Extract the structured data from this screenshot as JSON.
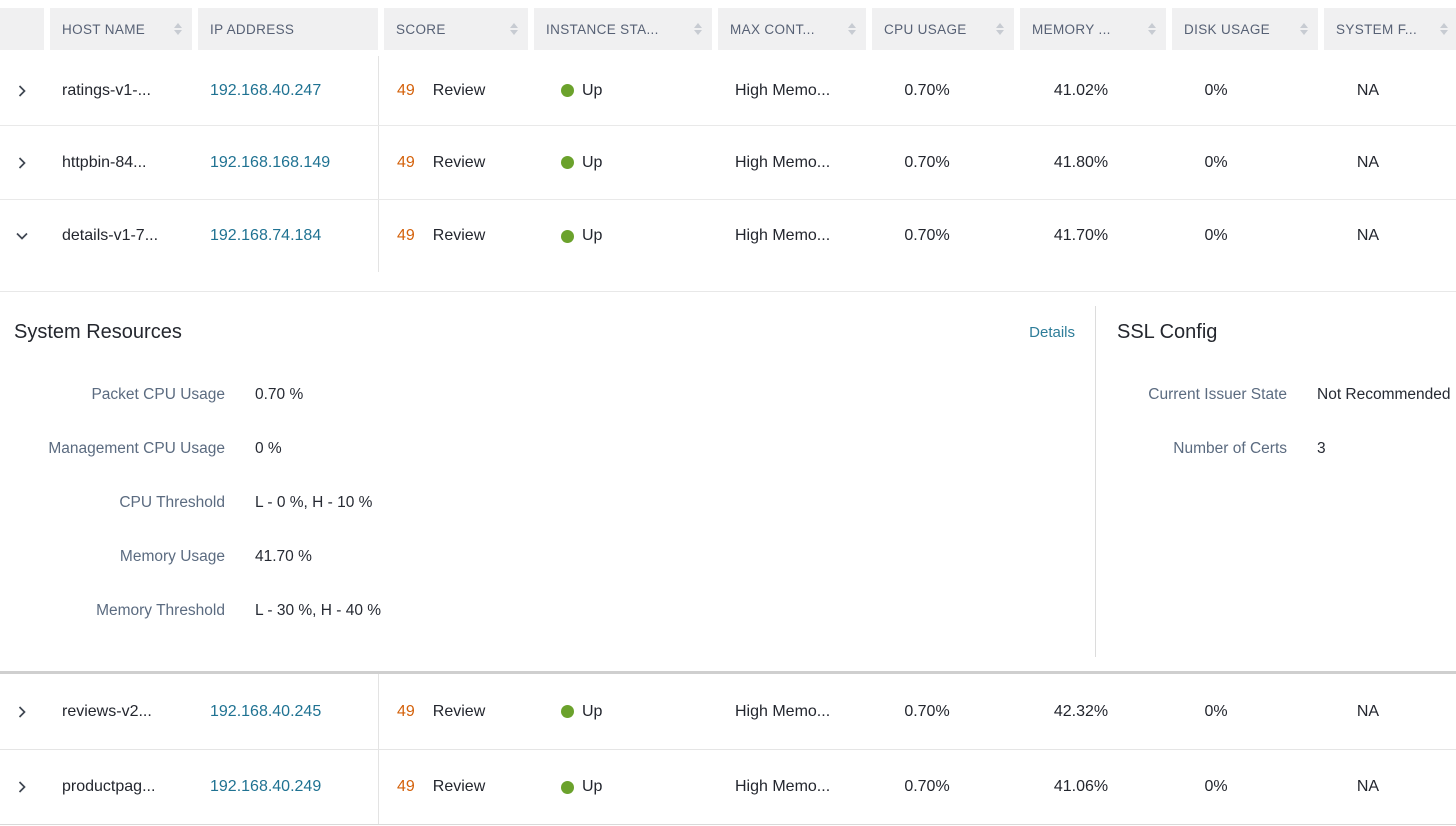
{
  "colors": {
    "header_bg": "#f0f0f1",
    "header_text": "#576175",
    "link_teal": "#1f7292",
    "score_orange": "#d4610a",
    "status_up_green": "#6ba22c",
    "details_link": "#2e7d99",
    "label_slate": "#5b6b80"
  },
  "table": {
    "columns": [
      {
        "key": "expander",
        "label": "",
        "sortable": false
      },
      {
        "key": "host-name",
        "label": "HOST NAME",
        "sortable": true
      },
      {
        "key": "ip-address",
        "label": "IP ADDRESS",
        "sortable": false
      },
      {
        "key": "score",
        "label": "SCORE",
        "sortable": true
      },
      {
        "key": "instance-state",
        "label": "INSTANCE STA...",
        "sortable": true
      },
      {
        "key": "max-cont",
        "label": "MAX CONT...",
        "sortable": true
      },
      {
        "key": "cpu-usage",
        "label": "CPU USAGE",
        "sortable": true
      },
      {
        "key": "memory-usage",
        "label": "MEMORY ...",
        "sortable": true
      },
      {
        "key": "disk-usage",
        "label": "DISK USAGE",
        "sortable": true
      },
      {
        "key": "system-f",
        "label": "SYSTEM F...",
        "sortable": true
      }
    ],
    "rows": [
      {
        "host": "ratings-v1-...",
        "ip": "192.168.40.247",
        "score": "49",
        "score_label": "Review",
        "state": "Up",
        "max_cont": "High Memo...",
        "cpu": "0.70%",
        "memory": "41.02%",
        "disk": "0%",
        "system": "NA",
        "expanded": false
      },
      {
        "host": "httpbin-84...",
        "ip": "192.168.168.149",
        "score": "49",
        "score_label": "Review",
        "state": "Up",
        "max_cont": "High Memo...",
        "cpu": "0.70%",
        "memory": "41.80%",
        "disk": "0%",
        "system": "NA",
        "expanded": false
      },
      {
        "host": "details-v1-7...",
        "ip": "192.168.74.184",
        "score": "49",
        "score_label": "Review",
        "state": "Up",
        "max_cont": "High Memo...",
        "cpu": "0.70%",
        "memory": "41.70%",
        "disk": "0%",
        "system": "NA",
        "expanded": true
      },
      {
        "host": "reviews-v2...",
        "ip": "192.168.40.245",
        "score": "49",
        "score_label": "Review",
        "state": "Up",
        "max_cont": "High Memo...",
        "cpu": "0.70%",
        "memory": "42.32%",
        "disk": "0%",
        "system": "NA",
        "expanded": false
      },
      {
        "host": "productpag...",
        "ip": "192.168.40.249",
        "score": "49",
        "score_label": "Review",
        "state": "Up",
        "max_cont": "High Memo...",
        "cpu": "0.70%",
        "memory": "41.06%",
        "disk": "0%",
        "system": "NA",
        "expanded": false
      }
    ]
  },
  "expanded_panel": {
    "system_resources": {
      "title": "System Resources",
      "details_link": "Details",
      "fields": [
        {
          "label": "Packet CPU Usage",
          "value": "0.70 %"
        },
        {
          "label": "Management CPU Usage",
          "value": "0 %"
        },
        {
          "label": "CPU Threshold",
          "value": "L - 0 %, H - 10 %"
        },
        {
          "label": "Memory Usage",
          "value": "41.70 %"
        },
        {
          "label": "Memory Threshold",
          "value": "L - 30 %, H - 40 %"
        }
      ]
    },
    "ssl_config": {
      "title": "SSL Config",
      "fields": [
        {
          "label": "Current Issuer State",
          "value": "Not Recommended"
        },
        {
          "label": "Number of Certs",
          "value": "3"
        }
      ]
    }
  }
}
